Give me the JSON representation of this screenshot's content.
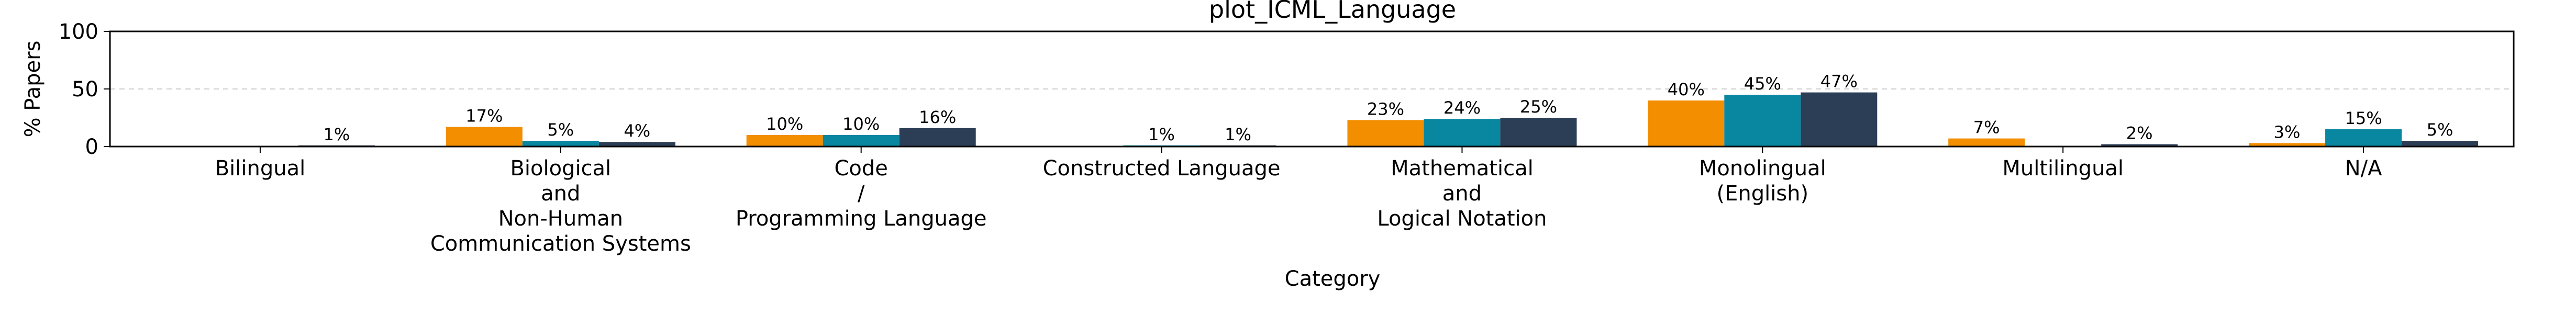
{
  "chart_data": {
    "type": "bar",
    "title": "plot_ICML_Language",
    "xlabel": "Category",
    "ylabel": "% Papers",
    "ylim": [
      0,
      100
    ],
    "yticks": [
      "0",
      "50",
      "100"
    ],
    "grid": "horizontal dashed",
    "categories": [
      "Bilingual",
      "Biological\nand\nNon-Human\nCommunication Systems",
      "Code\n/\nProgramming Language",
      "Constructed Language",
      "Mathematical\nand\nLogical Notation",
      "Monolingual\n(English)",
      "Multilingual",
      "N/A"
    ],
    "series": [
      {
        "color": "#f28e00",
        "values": [
          null,
          17,
          10,
          null,
          23,
          40,
          7,
          3
        ]
      },
      {
        "color": "#0a87a0",
        "values": [
          null,
          5,
          10,
          1,
          24,
          45,
          null,
          15
        ]
      },
      {
        "color": "#2c3e55",
        "values": [
          1,
          4,
          16,
          1,
          25,
          47,
          2,
          5
        ]
      }
    ]
  }
}
